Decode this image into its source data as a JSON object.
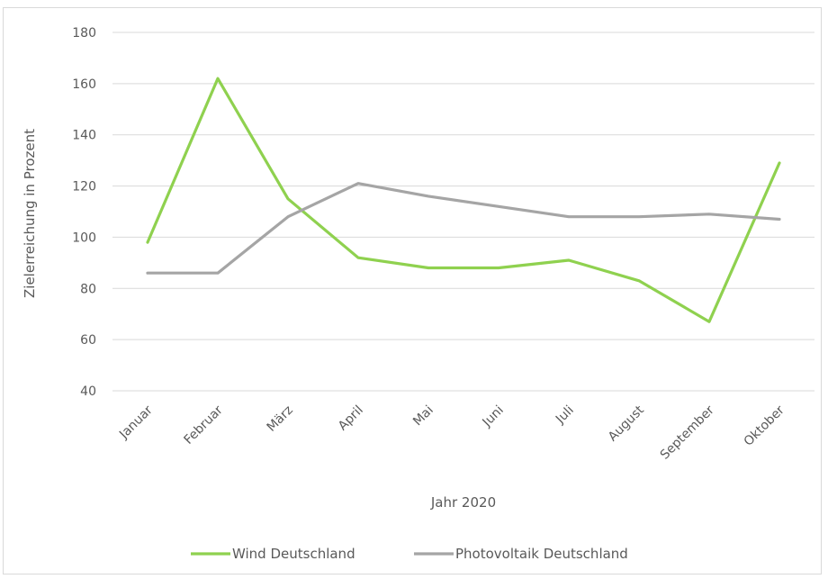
{
  "chart_data": {
    "type": "line",
    "title": "",
    "xlabel": "Jahr 2020",
    "ylabel": "Zielerreichung  in Prozent",
    "ylim": [
      40,
      180
    ],
    "yticks": [
      40,
      60,
      80,
      100,
      120,
      140,
      160,
      180
    ],
    "grid": true,
    "legend_position": "bottom",
    "categories": [
      "Januar",
      "Februar",
      "März",
      "April",
      "Mai",
      "Juni",
      "Juli",
      "August",
      "September",
      "Oktober"
    ],
    "series": [
      {
        "name": "Wind Deutschland",
        "color": "#8fd14f",
        "values": [
          98,
          162,
          115,
          92,
          88,
          88,
          91,
          83,
          67,
          129
        ]
      },
      {
        "name": "Photovoltaik Deutschland",
        "color": "#a5a5a5",
        "values": [
          86,
          86,
          108,
          121,
          116,
          112,
          108,
          108,
          109,
          107
        ]
      }
    ]
  }
}
